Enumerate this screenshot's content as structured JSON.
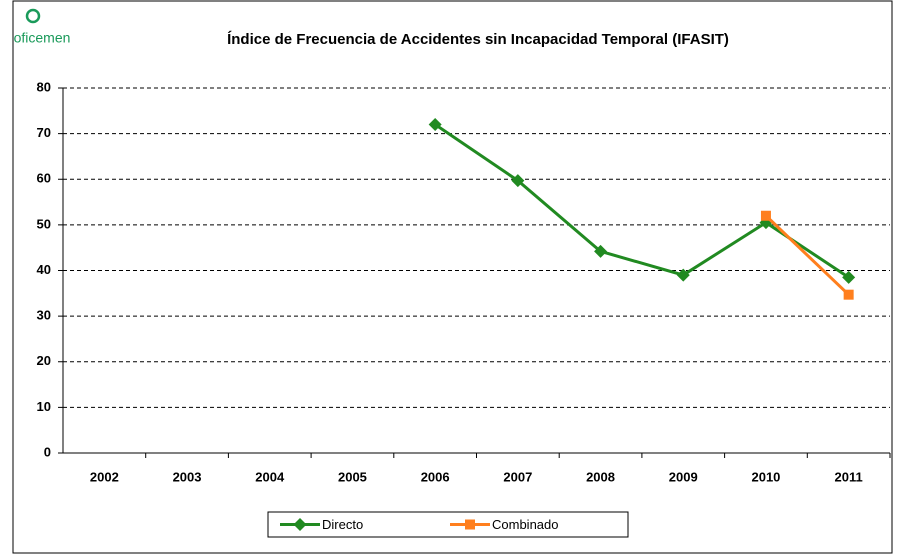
{
  "logo": "oficemen",
  "chart_data": {
    "type": "line",
    "title": "Índice de Frecuencia de Accidentes sin Incapacidad Temporal (IFASIT)",
    "categories": [
      "2002",
      "2003",
      "2004",
      "2005",
      "2006",
      "2007",
      "2008",
      "2009",
      "2010",
      "2011"
    ],
    "series": [
      {
        "name": "Directo",
        "color": "#218a21",
        "marker": "diamond",
        "values": [
          null,
          null,
          null,
          null,
          72,
          59.7,
          44.2,
          39,
          50.5,
          38.5
        ]
      },
      {
        "name": "Combinado",
        "color": "#ff7f1e",
        "marker": "square",
        "values": [
          null,
          null,
          null,
          null,
          null,
          null,
          null,
          null,
          52,
          34.7
        ]
      }
    ],
    "ylim": [
      0,
      80
    ],
    "yticks": [
      0,
      10,
      20,
      30,
      40,
      50,
      60,
      70,
      80
    ],
    "grid": true,
    "legend": "bottom"
  }
}
